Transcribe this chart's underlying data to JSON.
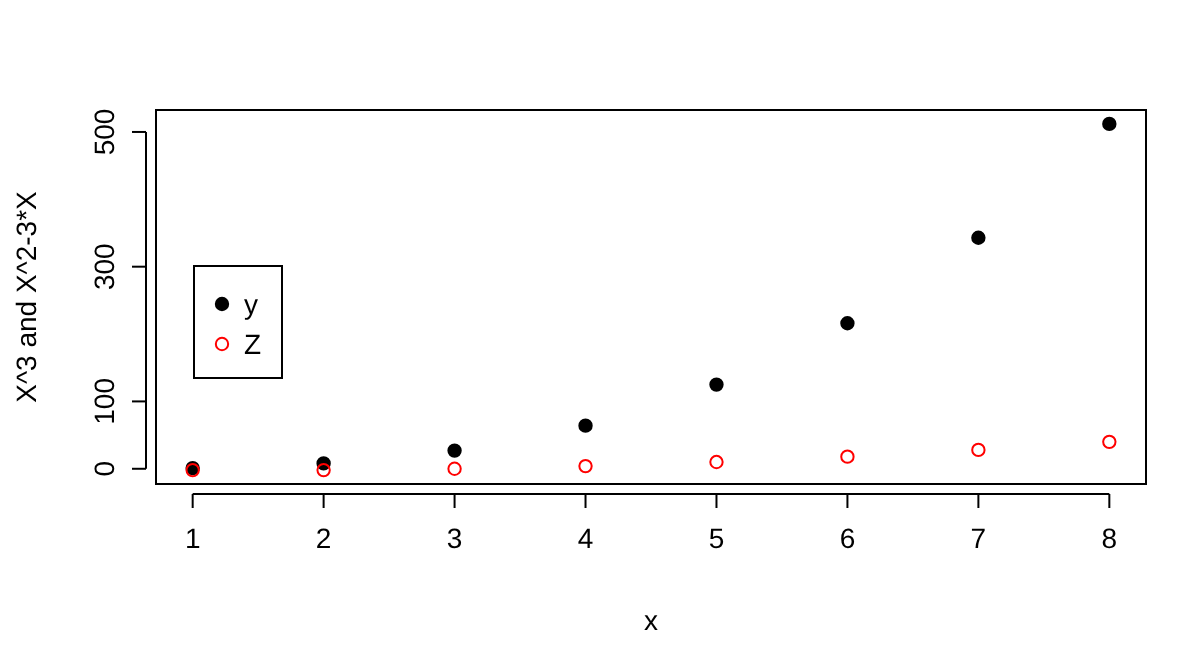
{
  "chart_data": {
    "type": "scatter",
    "xlabel": "x",
    "ylabel": "X^3 and X^2-3*X",
    "x": [
      1,
      2,
      3,
      4,
      5,
      6,
      7,
      8
    ],
    "series": [
      {
        "name": "y",
        "color": "#000000",
        "marker": "circle",
        "values": [
          1,
          8,
          27,
          64,
          125,
          216,
          343,
          512
        ]
      },
      {
        "name": "Z",
        "color": "#ff0000",
        "marker": "circle",
        "values": [
          -2,
          -2,
          0,
          4,
          10,
          18,
          28,
          40
        ]
      }
    ],
    "xlim": [
      0.72,
      8.28
    ],
    "ylim": [
      -22.6,
      532.6
    ],
    "xticks": [
      1,
      2,
      3,
      4,
      5,
      6,
      7,
      8
    ],
    "yticks": [
      0,
      100,
      300,
      500
    ],
    "grid": false,
    "legend": "left"
  }
}
